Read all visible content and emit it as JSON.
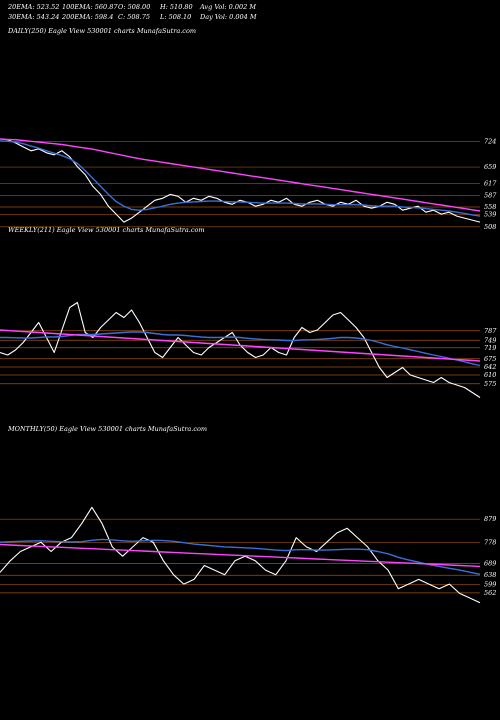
{
  "header": {
    "row1": [
      "20EMA: 523.52",
      "100EMA: 560.87",
      "O: 508.00",
      "H: 510.80",
      "Avg Vol: 0.002  M"
    ],
    "row2": [
      "30EMA: 543.24",
      "200EMA: 598.4",
      "C: 508.75",
      "L: 508.10",
      "Day Vol: 0.004  M"
    ]
  },
  "colors": {
    "background": "#000000",
    "price": "#ffffff",
    "ema_short": "#3a6fd8",
    "ema_long": "#ff44ff",
    "level_line": "#a0520a",
    "slow_line": "#b07a20"
  },
  "chart_data": [
    {
      "type": "line",
      "title": "DAILY(250) Eagle   View  530001 charts MunafaSutra.com",
      "y_ticks": [
        724,
        659,
        617,
        587,
        558,
        539,
        508
      ],
      "series": [
        {
          "name": "price",
          "values": [
            730,
            728,
            720,
            710,
            700,
            705,
            695,
            690,
            700,
            685,
            660,
            640,
            610,
            590,
            560,
            540,
            520,
            530,
            545,
            560,
            575,
            580,
            590,
            585,
            570,
            580,
            575,
            585,
            580,
            570,
            565,
            575,
            570,
            560,
            565,
            575,
            570,
            580,
            565,
            560,
            570,
            575,
            565,
            560,
            570,
            565,
            575,
            560,
            555,
            560,
            570,
            565,
            550,
            555,
            560,
            545,
            550,
            540,
            545,
            535,
            530,
            525,
            520
          ]
        },
        {
          "name": "ema_short",
          "values": [
            725,
            724,
            722,
            718,
            712,
            707,
            700,
            694,
            688,
            680,
            668,
            650,
            630,
            610,
            590,
            572,
            560,
            552,
            550,
            552,
            556,
            560,
            565,
            568,
            570,
            571,
            572,
            573,
            573,
            572,
            571,
            571,
            570,
            569,
            568,
            568,
            568,
            568,
            567,
            566,
            566,
            566,
            565,
            564,
            564,
            564,
            564,
            563,
            561,
            560,
            560,
            560,
            558,
            557,
            556,
            554,
            552,
            550,
            548,
            545,
            542,
            538,
            535
          ]
        },
        {
          "name": "ema_long",
          "values": [
            730,
            729,
            728,
            726,
            724,
            722,
            720,
            718,
            716,
            713,
            710,
            707,
            704,
            700,
            696,
            692,
            688,
            684,
            680,
            677,
            674,
            671,
            668,
            665,
            662,
            659,
            656,
            653,
            650,
            647,
            644,
            641,
            638,
            635,
            632,
            629,
            626,
            623,
            620,
            617,
            614,
            611,
            608,
            605,
            602,
            599,
            596,
            593,
            590,
            587,
            584,
            581,
            578,
            575,
            572,
            569,
            566,
            563,
            560,
            557,
            554,
            551,
            548
          ]
        }
      ]
    },
    {
      "type": "line",
      "title": "WEEKLY(211) Eagle   View  530001 charts MunafaSutra.com",
      "y_ticks": [
        787,
        749,
        719,
        675,
        642,
        610,
        575
      ],
      "series": [
        {
          "name": "price",
          "values": [
            700,
            690,
            710,
            740,
            780,
            820,
            760,
            700,
            790,
            880,
            900,
            780,
            760,
            800,
            830,
            860,
            840,
            870,
            820,
            760,
            700,
            680,
            720,
            760,
            730,
            700,
            690,
            720,
            740,
            760,
            780,
            730,
            700,
            680,
            690,
            720,
            700,
            690,
            760,
            800,
            780,
            790,
            820,
            850,
            860,
            830,
            800,
            760,
            700,
            640,
            600,
            620,
            640,
            610,
            600,
            590,
            580,
            600,
            580,
            570,
            560,
            540,
            520
          ]
        },
        {
          "name": "ema_short",
          "values": [
            760,
            760,
            759,
            758,
            758,
            760,
            762,
            762,
            764,
            768,
            772,
            772,
            772,
            774,
            776,
            778,
            780,
            782,
            782,
            780,
            776,
            772,
            770,
            770,
            768,
            765,
            762,
            760,
            760,
            761,
            762,
            760,
            757,
            754,
            752,
            751,
            750,
            748,
            748,
            750,
            751,
            752,
            754,
            757,
            760,
            760,
            758,
            754,
            748,
            740,
            731,
            724,
            718,
            711,
            704,
            697,
            690,
            684,
            677,
            670,
            663,
            655,
            648
          ]
        },
        {
          "name": "ema_long",
          "values": [
            790,
            788,
            786,
            784,
            782,
            780,
            778,
            776,
            774,
            772,
            770,
            768,
            766,
            764,
            762,
            760,
            758,
            756,
            754,
            752,
            750,
            748,
            746,
            744,
            742,
            740,
            738,
            736,
            734,
            732,
            730,
            728,
            726,
            724,
            722,
            720,
            718,
            716,
            714,
            712,
            710,
            708,
            706,
            704,
            702,
            700,
            698,
            696,
            694,
            692,
            690,
            688,
            686,
            684,
            682,
            680,
            678,
            676,
            674,
            672,
            670,
            668,
            666
          ]
        }
      ]
    },
    {
      "type": "line",
      "title": "MONTHLY(50) Eagle   View  530001 charts MunafaSutra.com",
      "y_ticks": [
        879,
        778,
        689,
        638,
        599,
        562
      ],
      "series": [
        {
          "name": "price",
          "values": [
            650,
            700,
            740,
            760,
            780,
            740,
            780,
            800,
            860,
            930,
            860,
            760,
            720,
            760,
            800,
            780,
            700,
            640,
            600,
            620,
            680,
            660,
            640,
            700,
            720,
            700,
            660,
            640,
            700,
            800,
            760,
            740,
            780,
            820,
            840,
            800,
            760,
            700,
            660,
            580,
            600,
            620,
            600,
            580,
            600,
            560,
            540,
            520
          ]
        },
        {
          "name": "ema_short",
          "values": [
            780,
            782,
            784,
            785,
            786,
            784,
            782,
            781,
            782,
            788,
            792,
            790,
            786,
            784,
            786,
            788,
            787,
            784,
            778,
            772,
            768,
            764,
            760,
            758,
            756,
            754,
            750,
            746,
            744,
            748,
            748,
            746,
            746,
            748,
            750,
            750,
            748,
            740,
            730,
            715,
            704,
            694,
            684,
            676,
            668,
            660,
            651,
            642
          ]
        },
        {
          "name": "ema_long",
          "values": [
            770,
            768,
            766,
            764,
            762,
            760,
            758,
            756,
            754,
            752,
            750,
            748,
            746,
            744,
            742,
            740,
            738,
            736,
            734,
            732,
            730,
            728,
            726,
            724,
            722,
            720,
            718,
            716,
            714,
            712,
            710,
            708,
            706,
            704,
            702,
            700,
            698,
            696,
            694,
            692,
            690,
            688,
            686,
            684,
            682,
            680,
            678,
            676
          ]
        }
      ]
    }
  ]
}
